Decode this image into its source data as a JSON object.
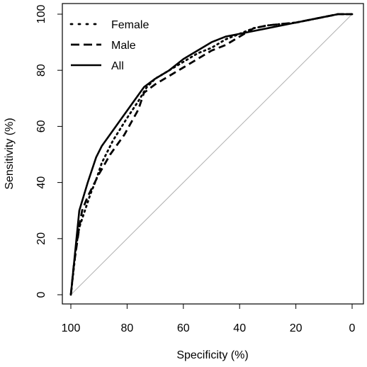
{
  "chart_data": {
    "type": "line",
    "title": "",
    "xlabel": "Specificity (%)",
    "ylabel": "Sensitivity (%)",
    "xlim": [
      100,
      0
    ],
    "ylim": [
      0,
      100
    ],
    "x_reversed": true,
    "x_ticks": [
      "100",
      "80",
      "60",
      "40",
      "20",
      "0"
    ],
    "y_ticks": [
      "0",
      "20",
      "40",
      "60",
      "80",
      "100"
    ],
    "grid": false,
    "legend_position": "top-left",
    "reference_line": {
      "from": [
        100,
        0
      ],
      "to": [
        0,
        100
      ],
      "color": "#b0b0b0"
    },
    "series": [
      {
        "name": "Female",
        "style": "dotted",
        "color": "#000000",
        "x": [
          100,
          99,
          98,
          97,
          95,
          93,
          91,
          89,
          85,
          80,
          76,
          73,
          70,
          65,
          60,
          55,
          50,
          45,
          40,
          35,
          30,
          20,
          10,
          5,
          0
        ],
        "y": [
          0,
          9,
          18,
          24,
          30,
          36,
          41,
          47,
          55,
          63,
          69,
          74,
          77,
          80,
          83,
          86,
          88,
          91,
          93,
          95,
          96,
          97,
          99,
          100,
          100
        ]
      },
      {
        "name": "Male",
        "style": "dashed",
        "color": "#000000",
        "x": [
          100,
          99,
          98,
          97,
          96,
          94,
          92,
          90,
          86,
          81,
          76,
          74,
          70,
          65,
          60,
          55,
          50,
          45,
          40,
          35,
          30,
          20,
          10,
          5,
          0
        ],
        "y": [
          0,
          10,
          17,
          24,
          30,
          35,
          39,
          43,
          50,
          57,
          66,
          72,
          75,
          78,
          81,
          84,
          87,
          89,
          92,
          95,
          96,
          97,
          99,
          100,
          100
        ]
      },
      {
        "name": "All",
        "style": "solid",
        "color": "#000000",
        "x": [
          100,
          97,
          94,
          91,
          89,
          84,
          79,
          74,
          70,
          65,
          60,
          55,
          50,
          45,
          40,
          35,
          30,
          20,
          10,
          5,
          0
        ],
        "y": [
          0,
          30,
          40,
          49,
          53,
          60,
          67,
          74,
          77,
          80,
          84,
          87,
          90,
          92,
          93,
          94,
          95,
          97,
          99,
          100,
          100
        ]
      }
    ]
  }
}
